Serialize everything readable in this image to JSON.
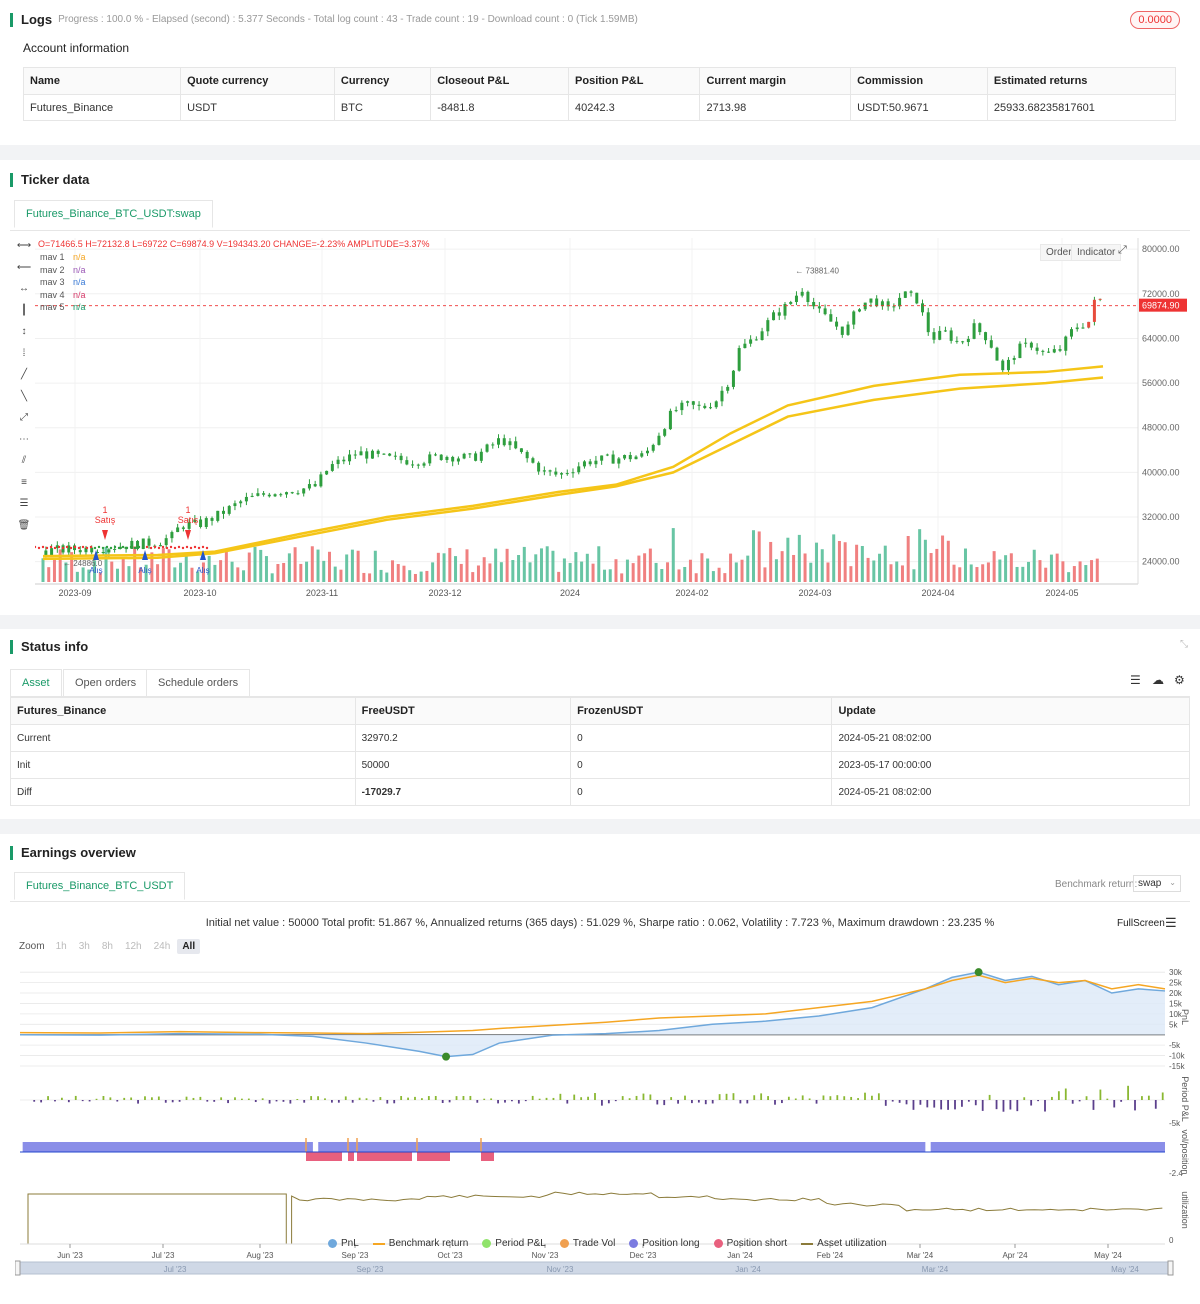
{
  "logs": {
    "title": "Logs",
    "summary": "Progress : 100.0 % - Elapsed (second) : 5.377   Seconds - Total log count : 43 - Trade count : 19 - Download count : 0 (Tick 1.59MB)",
    "badge": "0.0000"
  },
  "account": {
    "title": "Account information",
    "headers": [
      "Name",
      "Quote currency",
      "Currency",
      "Closeout P&L",
      "Position P&L",
      "Current margin",
      "Commission",
      "Estimated returns"
    ],
    "row": [
      "Futures_Binance",
      "USDT",
      "BTC",
      "-8481.8",
      "40242.3",
      "2713.98",
      "USDT:50.9671",
      "25933.68235817601"
    ]
  },
  "ticker": {
    "title": "Ticker data",
    "tab": "Futures_Binance_BTC_USDT:swap",
    "ohlc": "O=71466.5 H=72132.8 L=69722 C=69874.9 V=194343.20 CHANGE=-2.23% AMPLITUDE=3.37%",
    "mavs": [
      {
        "name": "mav 1",
        "value": "n/a",
        "color": "#f5a623"
      },
      {
        "name": "mav 2",
        "value": "n/a",
        "color": "#9b59b6"
      },
      {
        "name": "mav 3",
        "value": "n/a",
        "color": "#3b7bd6"
      },
      {
        "name": "mav 4",
        "value": "n/a",
        "color": "#d63b6a"
      },
      {
        "name": "mav 5",
        "value": "n/a",
        "color": "#1a9a68"
      }
    ],
    "buttons": {
      "order": "Order",
      "indicator": "Indicator"
    },
    "price_label": "69874.90",
    "high_label": "73881.40",
    "low_label": "24886.0",
    "sell_label": "1\nSatış",
    "buy_label": "Alış"
  },
  "chart_data": [
    {
      "type": "candlestick",
      "title": "",
      "x_ticks": [
        "2023-09",
        "2023-10",
        "2023-11",
        "2023-12",
        "2024",
        "2024-02",
        "2024-03",
        "2024-04",
        "2024-05"
      ],
      "y_ticks": [
        "80000.00",
        "72000.00",
        "64000.00",
        "56000.00",
        "48000.00",
        "40000.00",
        "32000.00",
        "24000.00"
      ],
      "ylim": [
        20000,
        82000
      ],
      "close_path": [
        [
          0,
          26000
        ],
        [
          10,
          26200
        ],
        [
          20,
          26500
        ],
        [
          30,
          27000
        ],
        [
          40,
          27500
        ],
        [
          45,
          28500
        ],
        [
          48,
          30500
        ],
        [
          55,
          30800
        ],
        [
          60,
          32000
        ],
        [
          70,
          35000
        ],
        [
          80,
          36500
        ],
        [
          90,
          37000
        ],
        [
          95,
          37500
        ],
        [
          100,
          41000
        ],
        [
          110,
          43500
        ],
        [
          120,
          42500
        ],
        [
          130,
          42000
        ],
        [
          140,
          43000
        ],
        [
          150,
          42500
        ],
        [
          160,
          46000
        ],
        [
          170,
          42000
        ],
        [
          175,
          40000
        ],
        [
          180,
          39500
        ],
        [
          190,
          42000
        ],
        [
          200,
          42500
        ],
        [
          210,
          43000
        ],
        [
          215,
          47000
        ],
        [
          220,
          51000
        ],
        [
          225,
          52000
        ],
        [
          230,
          51500
        ],
        [
          235,
          53000
        ],
        [
          240,
          57000
        ],
        [
          243,
          62000
        ],
        [
          248,
          64000
        ],
        [
          255,
          68000
        ],
        [
          260,
          70000
        ],
        [
          265,
          73000
        ],
        [
          270,
          69000
        ],
        [
          275,
          67000
        ],
        [
          280,
          65000
        ],
        [
          285,
          70000
        ],
        [
          290,
          71000
        ],
        [
          295,
          69000
        ],
        [
          300,
          72000
        ],
        [
          305,
          71000
        ],
        [
          310,
          64000
        ],
        [
          315,
          65000
        ],
        [
          320,
          63000
        ],
        [
          325,
          66000
        ],
        [
          330,
          64000
        ],
        [
          335,
          58000
        ],
        [
          340,
          62000
        ],
        [
          345,
          63000
        ],
        [
          350,
          61000
        ],
        [
          355,
          62000
        ],
        [
          360,
          66000
        ],
        [
          365,
          67000
        ],
        [
          368,
          72000
        ],
        [
          370,
          69875
        ]
      ],
      "ma_series": [
        {
          "name": "",
          "color": "#f5c518",
          "values": [
            [
              0,
              24500
            ],
            [
              40,
              24700
            ],
            [
              60,
              25500
            ],
            [
              90,
              28500
            ],
            [
              120,
              31500
            ],
            [
              150,
              33500
            ],
            [
              180,
              36000
            ],
            [
              200,
              37500
            ],
            [
              220,
              40000
            ],
            [
              240,
              45000
            ],
            [
              260,
              50000
            ],
            [
              290,
              53000
            ],
            [
              320,
              55000
            ],
            [
              350,
              56000
            ],
            [
              370,
              57000
            ]
          ]
        },
        {
          "name": "",
          "color": "#f5c518",
          "values": [
            [
              0,
              25000
            ],
            [
              40,
              25200
            ],
            [
              60,
              25800
            ],
            [
              90,
              29000
            ],
            [
              120,
              32000
            ],
            [
              150,
              34000
            ],
            [
              180,
              36500
            ],
            [
              200,
              37800
            ],
            [
              220,
              41000
            ],
            [
              240,
              47000
            ],
            [
              260,
              52000
            ],
            [
              290,
              55500
            ],
            [
              320,
              57500
            ],
            [
              350,
              58000
            ],
            [
              370,
              59000
            ]
          ]
        }
      ]
    },
    {
      "type": "line",
      "title": "Initial net value : 50000 Total profit: 51.867 %, Annualized returns (365 days) : 51.029 %, Sharpe ratio : 0.062, Volatility : 7.723 %, Maximum drawdown : 23.235 %",
      "x_ticks": [
        "Jun '23",
        "Jul '23",
        "Aug '23",
        "Sep '23",
        "Oct '23",
        "Nov '23",
        "Dec '23",
        "Jan '24",
        "Feb '24",
        "Mar '24",
        "Apr '24",
        "May '24"
      ],
      "y_ticks": [
        "30k",
        "25k",
        "20k",
        "15k",
        "10k",
        "5k",
        "0",
        "-5k",
        "-10k",
        "-15k"
      ],
      "ylim": [
        -15000,
        32000
      ],
      "series": [
        {
          "name": "PnL",
          "color": "#6fa8dc",
          "values": [
            [
              0,
              0
            ],
            [
              30,
              -200
            ],
            [
              60,
              500
            ],
            [
              90,
              200
            ],
            [
              110,
              -800
            ],
            [
              130,
              -4000
            ],
            [
              150,
              -8000
            ],
            [
              160,
              -10500
            ],
            [
              170,
              -9500
            ],
            [
              180,
              -4000
            ],
            [
              200,
              -200
            ],
            [
              220,
              500
            ],
            [
              240,
              2000
            ],
            [
              260,
              5000
            ],
            [
              280,
              6500
            ],
            [
              300,
              9000
            ],
            [
              320,
              13000
            ],
            [
              340,
              22000
            ],
            [
              350,
              27500
            ],
            [
              360,
              30000
            ],
            [
              370,
              26000
            ],
            [
              380,
              28000
            ],
            [
              390,
              24000
            ],
            [
              400,
              26000
            ],
            [
              410,
              20000
            ],
            [
              420,
              22000
            ],
            [
              430,
              21000
            ]
          ]
        },
        {
          "name": "Benchmark return",
          "color": "#f5a623",
          "values": [
            [
              0,
              1000
            ],
            [
              30,
              800
            ],
            [
              60,
              1500
            ],
            [
              90,
              1000
            ],
            [
              110,
              800
            ],
            [
              130,
              500
            ],
            [
              150,
              1200
            ],
            [
              170,
              2000
            ],
            [
              180,
              3000
            ],
            [
              200,
              4500
            ],
            [
              220,
              6000
            ],
            [
              240,
              8000
            ],
            [
              260,
              9000
            ],
            [
              280,
              10000
            ],
            [
              300,
              13000
            ],
            [
              320,
              16000
            ],
            [
              340,
              22000
            ],
            [
              350,
              26000
            ],
            [
              360,
              28500
            ],
            [
              370,
              25000
            ],
            [
              380,
              27000
            ],
            [
              390,
              25000
            ],
            [
              400,
              26000
            ],
            [
              410,
              22000
            ],
            [
              420,
              24000
            ],
            [
              430,
              22000
            ]
          ]
        }
      ]
    }
  ],
  "status": {
    "title": "Status info",
    "tabs": [
      "Asset",
      "Open orders",
      "Schedule orders"
    ],
    "headers": [
      "Futures_Binance",
      "FreeUSDT",
      "FrozenUSDT",
      "Update"
    ],
    "rows": [
      [
        "Current",
        "32970.2",
        "0",
        "2024-05-21 08:02:00"
      ],
      [
        "Init",
        "50000",
        "0",
        "2023-05-17 00:00:00"
      ],
      [
        "Diff",
        "-17029.7",
        "0",
        "2024-05-21 08:02:00"
      ]
    ]
  },
  "earnings": {
    "title": "Earnings overview",
    "tab": "Futures_Binance_BTC_USDT",
    "benchmark_label": "Benchmark return:",
    "benchmark_value": "swap",
    "fullscreen": "FullScreen",
    "zoom_label": "Zoom",
    "zoom_options": [
      "1h",
      "3h",
      "8h",
      "12h",
      "24h",
      "All"
    ],
    "axis_pnl": "PnL",
    "axis_period": "Period P&L",
    "axis_vol": "vol/position",
    "axis_util": "utilization",
    "period_tick": "-5k",
    "vol_tick": "-2.4",
    "util_tick": "0",
    "legend": [
      {
        "name": "PnL",
        "color": "#6fa8dc",
        "kind": "dot"
      },
      {
        "name": "Benchmark return",
        "color": "#f5a623",
        "kind": "line"
      },
      {
        "name": "Period P&L",
        "color": "#90e36b",
        "kind": "dot"
      },
      {
        "name": "Trade Vol",
        "color": "#f0a050",
        "kind": "dot"
      },
      {
        "name": "Position long",
        "color": "#7b7be0",
        "kind": "dot"
      },
      {
        "name": "Position short",
        "color": "#e8607e",
        "kind": "dot"
      },
      {
        "name": "Asset utilization",
        "color": "#8b7b3a",
        "kind": "line"
      }
    ],
    "nav_ticks": [
      "Jul '23",
      "Sep '23",
      "Nov '23",
      "Jan '24",
      "Mar '24",
      "May '24"
    ]
  }
}
